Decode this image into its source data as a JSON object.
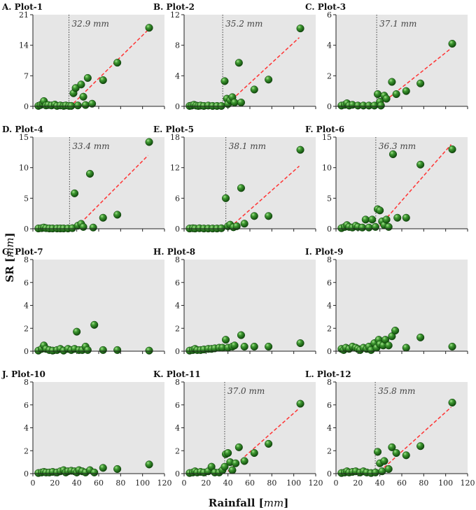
{
  "chart_data": {
    "type": "scatter",
    "xlabel": "Rainfall",
    "xlabel_unit": "mm",
    "ylabel": "SR",
    "ylabel_unit": "mm",
    "xlim": [
      0,
      120
    ],
    "xticks": [
      "0",
      "20",
      "40",
      "60",
      "80",
      "100",
      "120"
    ],
    "grid": false,
    "panels": [
      {
        "title": "A. Plot-1",
        "ylim": [
          0,
          21
        ],
        "yticks": [
          "0",
          "7",
          "14",
          "21"
        ],
        "threshold": 32.9,
        "threshold_label": "32.9 mm",
        "trend": [
          [
            37,
            0.7
          ],
          [
            105,
            17.5
          ]
        ],
        "points": [
          [
            5,
            0.1
          ],
          [
            7,
            0.3
          ],
          [
            9,
            0.6
          ],
          [
            10,
            1.2
          ],
          [
            12,
            0.2
          ],
          [
            14,
            0.3
          ],
          [
            17,
            0.2
          ],
          [
            20,
            0.4
          ],
          [
            22,
            0.1
          ],
          [
            25,
            0.2
          ],
          [
            28,
            0.1
          ],
          [
            30,
            0.2
          ],
          [
            33,
            0.1
          ],
          [
            35,
            0.1
          ],
          [
            37,
            3.0
          ],
          [
            39,
            4.2
          ],
          [
            41,
            0.2
          ],
          [
            44,
            5.0
          ],
          [
            46,
            2.2
          ],
          [
            48,
            0.3
          ],
          [
            50,
            6.5
          ],
          [
            54,
            0.6
          ],
          [
            64,
            6.0
          ],
          [
            77,
            10.0
          ],
          [
            106,
            18.0
          ]
        ]
      },
      {
        "title": "B. Plot-2",
        "ylim": [
          0,
          12
        ],
        "yticks": [
          "0",
          "4",
          "8",
          "12"
        ],
        "threshold": 35.2,
        "threshold_label": "35.2 mm",
        "trend": [
          [
            40,
            0.4
          ],
          [
            105,
            9.0
          ]
        ],
        "points": [
          [
            5,
            0.05
          ],
          [
            7,
            0.1
          ],
          [
            9,
            0.2
          ],
          [
            11,
            0.1
          ],
          [
            13,
            0.05
          ],
          [
            15,
            0.1
          ],
          [
            18,
            0.05
          ],
          [
            22,
            0.1
          ],
          [
            26,
            0.05
          ],
          [
            30,
            0.05
          ],
          [
            34,
            0.05
          ],
          [
            37,
            3.3
          ],
          [
            39,
            1.0
          ],
          [
            40,
            0.3
          ],
          [
            42,
            0.8
          ],
          [
            44,
            1.2
          ],
          [
            46,
            0.5
          ],
          [
            50,
            5.7
          ],
          [
            52,
            0.5
          ],
          [
            64,
            2.2
          ],
          [
            77,
            3.5
          ],
          [
            106,
            10.2
          ]
        ]
      },
      {
        "title": "C. Plot-3",
        "ylim": [
          0,
          6
        ],
        "yticks": [
          "0",
          "2",
          "4",
          "6"
        ],
        "threshold": 37.1,
        "threshold_label": "37.1 mm",
        "trend": [
          [
            41,
            0.15
          ],
          [
            105,
            3.8
          ]
        ],
        "points": [
          [
            5,
            0.05
          ],
          [
            8,
            0.1
          ],
          [
            10,
            0.2
          ],
          [
            12,
            0.05
          ],
          [
            15,
            0.1
          ],
          [
            20,
            0.05
          ],
          [
            25,
            0.05
          ],
          [
            30,
            0.05
          ],
          [
            35,
            0.05
          ],
          [
            38,
            0.8
          ],
          [
            40,
            0.3
          ],
          [
            41,
            0.05
          ],
          [
            44,
            0.7
          ],
          [
            46,
            0.5
          ],
          [
            51,
            1.6
          ],
          [
            55,
            0.8
          ],
          [
            64,
            1.0
          ],
          [
            77,
            1.5
          ],
          [
            106,
            4.1
          ]
        ]
      },
      {
        "title": "D. Plot-4",
        "ylim": [
          0,
          15
        ],
        "yticks": [
          "0",
          "5",
          "10",
          "15"
        ],
        "threshold": 33.4,
        "threshold_label": "33.4 mm",
        "trend": [
          [
            40,
            0.3
          ],
          [
            105,
            12.0
          ]
        ],
        "points": [
          [
            5,
            0.05
          ],
          [
            8,
            0.1
          ],
          [
            10,
            0.2
          ],
          [
            12,
            0.1
          ],
          [
            15,
            0.05
          ],
          [
            18,
            0.05
          ],
          [
            22,
            0.05
          ],
          [
            25,
            0.05
          ],
          [
            28,
            0.05
          ],
          [
            32,
            0.05
          ],
          [
            36,
            0.1
          ],
          [
            38,
            5.8
          ],
          [
            41,
            0.5
          ],
          [
            44,
            0.8
          ],
          [
            46,
            0.3
          ],
          [
            52,
            9.0
          ],
          [
            55,
            0.2
          ],
          [
            64,
            1.8
          ],
          [
            77,
            2.3
          ],
          [
            106,
            14.2
          ]
        ]
      },
      {
        "title": "E. Plot-5",
        "ylim": [
          0,
          18
        ],
        "yticks": [
          "0",
          "6",
          "12",
          "18"
        ],
        "threshold": 38.1,
        "threshold_label": "38.1 mm",
        "trend": [
          [
            42,
            0.3
          ],
          [
            105,
            12.3
          ]
        ],
        "points": [
          [
            5,
            0.05
          ],
          [
            8,
            0.1
          ],
          [
            10,
            0.05
          ],
          [
            14,
            0.1
          ],
          [
            18,
            0.05
          ],
          [
            22,
            0.05
          ],
          [
            26,
            0.05
          ],
          [
            30,
            0.05
          ],
          [
            34,
            0.1
          ],
          [
            38,
            6.0
          ],
          [
            40,
            0.5
          ],
          [
            42,
            0.8
          ],
          [
            45,
            0.3
          ],
          [
            48,
            0.5
          ],
          [
            52,
            8.0
          ],
          [
            55,
            1.0
          ],
          [
            64,
            2.5
          ],
          [
            77,
            2.5
          ],
          [
            106,
            15.5
          ]
        ]
      },
      {
        "title": "F. Plot-6",
        "ylim": [
          0,
          15
        ],
        "yticks": [
          "0",
          "5",
          "10",
          "15"
        ],
        "threshold": 36.3,
        "threshold_label": "36.3 mm",
        "trend": [
          [
            40,
            0.5
          ],
          [
            105,
            13.8
          ]
        ],
        "points": [
          [
            5,
            0.1
          ],
          [
            8,
            0.3
          ],
          [
            10,
            0.6
          ],
          [
            12,
            0.3
          ],
          [
            15,
            0.2
          ],
          [
            18,
            0.5
          ],
          [
            20,
            0.3
          ],
          [
            24,
            0.2
          ],
          [
            27,
            1.5
          ],
          [
            30,
            0.2
          ],
          [
            33,
            1.5
          ],
          [
            36,
            0.3
          ],
          [
            38,
            3.2
          ],
          [
            40,
            3.0
          ],
          [
            42,
            1.2
          ],
          [
            44,
            0.6
          ],
          [
            46,
            1.5
          ],
          [
            48,
            0.3
          ],
          [
            52,
            12.2
          ],
          [
            56,
            1.8
          ],
          [
            64,
            1.8
          ],
          [
            77,
            10.5
          ],
          [
            106,
            13.0
          ]
        ]
      },
      {
        "title": "G. Plot-7",
        "ylim": [
          0,
          8
        ],
        "yticks": [
          "0",
          "2",
          "4",
          "6",
          "8"
        ],
        "threshold": null,
        "threshold_label": "",
        "trend": [],
        "points": [
          [
            5,
            0.05
          ],
          [
            8,
            0.2
          ],
          [
            10,
            0.5
          ],
          [
            12,
            0.2
          ],
          [
            15,
            0.1
          ],
          [
            18,
            0.05
          ],
          [
            22,
            0.1
          ],
          [
            25,
            0.2
          ],
          [
            28,
            0.05
          ],
          [
            32,
            0.2
          ],
          [
            35,
            0.1
          ],
          [
            38,
            0.2
          ],
          [
            40,
            1.7
          ],
          [
            42,
            0.1
          ],
          [
            45,
            0.1
          ],
          [
            48,
            0.4
          ],
          [
            50,
            0.1
          ],
          [
            56,
            2.3
          ],
          [
            64,
            0.1
          ],
          [
            77,
            0.1
          ],
          [
            106,
            0.05
          ]
        ]
      },
      {
        "title": "H. Plot-8",
        "ylim": [
          0,
          8
        ],
        "yticks": [
          "0",
          "2",
          "4",
          "6",
          "8"
        ],
        "threshold": null,
        "threshold_label": "",
        "trend": [],
        "points": [
          [
            5,
            0.05
          ],
          [
            8,
            0.1
          ],
          [
            10,
            0.2
          ],
          [
            12,
            0.1
          ],
          [
            15,
            0.1
          ],
          [
            18,
            0.15
          ],
          [
            22,
            0.2
          ],
          [
            25,
            0.2
          ],
          [
            28,
            0.25
          ],
          [
            32,
            0.3
          ],
          [
            35,
            0.3
          ],
          [
            38,
            1.0
          ],
          [
            40,
            0.3
          ],
          [
            44,
            0.4
          ],
          [
            46,
            0.5
          ],
          [
            52,
            1.4
          ],
          [
            55,
            0.4
          ],
          [
            64,
            0.4
          ],
          [
            77,
            0.4
          ],
          [
            106,
            0.7
          ]
        ]
      },
      {
        "title": "I. Plot-9",
        "ylim": [
          0,
          8
        ],
        "yticks": [
          "0",
          "2",
          "4",
          "6",
          "8"
        ],
        "threshold": null,
        "threshold_label": "",
        "trend": [],
        "points": [
          [
            5,
            0.2
          ],
          [
            7,
            0.1
          ],
          [
            9,
            0.3
          ],
          [
            12,
            0.2
          ],
          [
            15,
            0.4
          ],
          [
            18,
            0.3
          ],
          [
            20,
            0.2
          ],
          [
            22,
            0.1
          ],
          [
            25,
            0.3
          ],
          [
            28,
            0.2
          ],
          [
            30,
            0.4
          ],
          [
            32,
            0.1
          ],
          [
            35,
            0.7
          ],
          [
            37,
            0.3
          ],
          [
            39,
            1.0
          ],
          [
            40,
            0.6
          ],
          [
            43,
            0.5
          ],
          [
            45,
            1.0
          ],
          [
            48,
            0.5
          ],
          [
            51,
            1.3
          ],
          [
            54,
            1.8
          ],
          [
            64,
            0.3
          ],
          [
            77,
            1.2
          ],
          [
            106,
            0.4
          ]
        ]
      },
      {
        "title": "J. Plot-10",
        "ylim": [
          0,
          8
        ],
        "yticks": [
          "0",
          "2",
          "4",
          "6",
          "8"
        ],
        "threshold": null,
        "threshold_label": "",
        "trend": [],
        "points": [
          [
            5,
            0.05
          ],
          [
            8,
            0.1
          ],
          [
            10,
            0.15
          ],
          [
            12,
            0.1
          ],
          [
            15,
            0.1
          ],
          [
            18,
            0.15
          ],
          [
            22,
            0.1
          ],
          [
            25,
            0.2
          ],
          [
            28,
            0.3
          ],
          [
            30,
            0.1
          ],
          [
            32,
            0.2
          ],
          [
            35,
            0.25
          ],
          [
            38,
            0.2
          ],
          [
            40,
            0.1
          ],
          [
            42,
            0.3
          ],
          [
            45,
            0.2
          ],
          [
            48,
            0.1
          ],
          [
            52,
            0.3
          ],
          [
            56,
            0.1
          ],
          [
            64,
            0.5
          ],
          [
            77,
            0.4
          ],
          [
            106,
            0.8
          ]
        ]
      },
      {
        "title": "K. Plot-11",
        "ylim": [
          0,
          8
        ],
        "yticks": [
          "0",
          "2",
          "4",
          "6",
          "8"
        ],
        "threshold": 37.0,
        "threshold_label": "37.0 mm",
        "trend": [
          [
            40,
            0.2
          ],
          [
            105,
            5.7
          ]
        ],
        "points": [
          [
            5,
            0.05
          ],
          [
            8,
            0.1
          ],
          [
            10,
            0.2
          ],
          [
            12,
            0.1
          ],
          [
            15,
            0.15
          ],
          [
            18,
            0.1
          ],
          [
            22,
            0.2
          ],
          [
            25,
            0.6
          ],
          [
            28,
            0.1
          ],
          [
            32,
            0.1
          ],
          [
            35,
            0.3
          ],
          [
            37,
            0.6
          ],
          [
            38,
            1.7
          ],
          [
            40,
            1.8
          ],
          [
            42,
            1.0
          ],
          [
            44,
            0.3
          ],
          [
            47,
            0.9
          ],
          [
            50,
            2.3
          ],
          [
            55,
            1.1
          ],
          [
            64,
            1.8
          ],
          [
            77,
            2.6
          ],
          [
            106,
            6.1
          ]
        ]
      },
      {
        "title": "L. Plot-12",
        "ylim": [
          0,
          8
        ],
        "yticks": [
          "0",
          "2",
          "4",
          "6",
          "8"
        ],
        "threshold": 35.8,
        "threshold_label": "35.8 mm",
        "trend": [
          [
            40,
            0.2
          ],
          [
            105,
            5.8
          ]
        ],
        "points": [
          [
            5,
            0.05
          ],
          [
            8,
            0.1
          ],
          [
            10,
            0.2
          ],
          [
            12,
            0.1
          ],
          [
            15,
            0.15
          ],
          [
            18,
            0.2
          ],
          [
            22,
            0.1
          ],
          [
            25,
            0.2
          ],
          [
            28,
            0.1
          ],
          [
            32,
            0.05
          ],
          [
            36,
            0.1
          ],
          [
            38,
            1.9
          ],
          [
            40,
            0.9
          ],
          [
            42,
            0.2
          ],
          [
            44,
            1.1
          ],
          [
            48,
            0.4
          ],
          [
            51,
            2.3
          ],
          [
            55,
            1.8
          ],
          [
            64,
            1.6
          ],
          [
            77,
            2.4
          ],
          [
            106,
            6.2
          ]
        ]
      }
    ]
  },
  "colors": {
    "panel_bg": "#e6e6e6",
    "marker": "#2a7a22",
    "marker_highlight": "#8fd37f",
    "trend_line": "#ff3333",
    "threshold_line": "#333333"
  }
}
